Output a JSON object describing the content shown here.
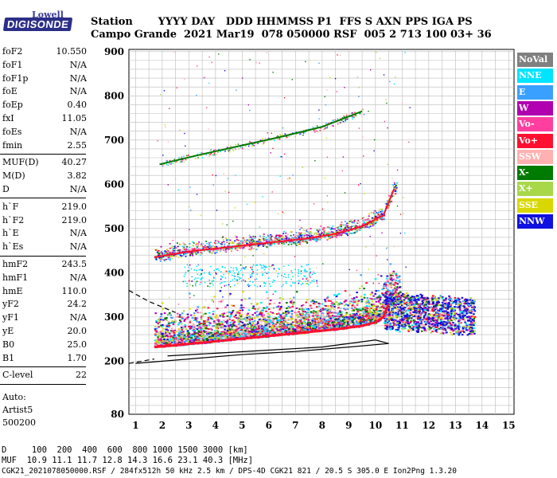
{
  "logo": {
    "top": "Lowell",
    "bottom": "DIGISONDE"
  },
  "header": {
    "labels": "Station       YYYY DAY   DDD HHMMSS P1  FFS S AXN PPS IGA PS",
    "values": "Campo Grande  2021 Mar19  078 050000 RSF  005 2 713 100 03+ 36"
  },
  "params": [
    {
      "group": [
        {
          "label": "foF2",
          "value": "10.550"
        },
        {
          "label": "foF1",
          "value": "N/A"
        },
        {
          "label": "foF1p",
          "value": "N/A"
        },
        {
          "label": "foE",
          "value": "N/A"
        },
        {
          "label": "foEp",
          "value": "0.40"
        },
        {
          "label": "fxI",
          "value": "11.05"
        },
        {
          "label": "foEs",
          "value": "N/A"
        },
        {
          "label": "fmin",
          "value": "2.55"
        }
      ]
    },
    {
      "group": [
        {
          "label": "MUF(D)",
          "value": "40.27"
        },
        {
          "label": "M(D)",
          "value": "3.82"
        },
        {
          "label": "D",
          "value": "N/A"
        }
      ]
    },
    {
      "group": [
        {
          "label": "h`F",
          "value": "219.0"
        },
        {
          "label": "h`F2",
          "value": "219.0"
        },
        {
          "label": "h`E",
          "value": "N/A"
        },
        {
          "label": "h`Es",
          "value": "N/A"
        }
      ]
    },
    {
      "group": [
        {
          "label": "hmF2",
          "value": "243.5"
        },
        {
          "label": "hmF1",
          "value": "N/A"
        },
        {
          "label": "hmE",
          "value": "110.0"
        },
        {
          "label": "yF2",
          "value": "24.2"
        },
        {
          "label": "yF1",
          "value": "N/A"
        },
        {
          "label": "yE",
          "value": "20.0"
        },
        {
          "label": "B0",
          "value": "25.0"
        },
        {
          "label": "B1",
          "value": "1.70"
        }
      ]
    },
    {
      "group": [
        {
          "label": "C-level",
          "value": "22"
        }
      ]
    }
  ],
  "autoscaling": {
    "line1": "Auto:",
    "line2": "Artist5",
    "line3": "500200"
  },
  "legend": [
    {
      "label": "NoVal",
      "color": "#808080"
    },
    {
      "label": "NNE",
      "color": "#00e5ff"
    },
    {
      "label": "E",
      "color": "#3aa0ff"
    },
    {
      "label": "W",
      "color": "#b000b0"
    },
    {
      "label": "Vo-",
      "color": "#ff3fa0"
    },
    {
      "label": "Vo+",
      "color": "#ff1030"
    },
    {
      "label": "SSW",
      "color": "#ffb0b0"
    },
    {
      "label": "X-",
      "color": "#007a00"
    },
    {
      "label": "X+",
      "color": "#a8d84a"
    },
    {
      "label": "SSE",
      "color": "#d8d800"
    },
    {
      "label": "NNW",
      "color": "#1010e0"
    }
  ],
  "chart_data": {
    "type": "scatter",
    "xlabel": "",
    "ylabel": "",
    "xlim": [
      0.75,
      15.2
    ],
    "ylim": [
      80,
      905
    ],
    "xticks": [
      1,
      2,
      3,
      4,
      5,
      6,
      7,
      8,
      9,
      10,
      11,
      12,
      13,
      14,
      15
    ],
    "yticks": [
      80,
      200,
      300,
      400,
      500,
      600,
      700,
      800,
      900
    ],
    "grid": true,
    "traces": [
      {
        "name": "O-trace F2",
        "color": "#ff1030",
        "x": [
          1.7,
          2.5,
          3.5,
          4.5,
          5.5,
          6.5,
          7.5,
          8.5,
          9.5,
          10.0,
          10.3,
          10.5
        ],
        "y": [
          232,
          236,
          242,
          248,
          254,
          260,
          266,
          272,
          280,
          288,
          300,
          330
        ]
      },
      {
        "name": "2nd hop",
        "color": "#ff1030",
        "x": [
          1.7,
          3.0,
          4.5,
          6.0,
          7.5,
          8.5,
          9.5,
          10.3,
          10.7
        ],
        "y": [
          435,
          448,
          458,
          468,
          478,
          488,
          505,
          530,
          590
        ]
      },
      {
        "name": "3rd hop",
        "color": "#007a00",
        "x": [
          1.9,
          3.5,
          5.0,
          6.5,
          8.0,
          9.5
        ],
        "y": [
          645,
          668,
          688,
          708,
          730,
          765
        ]
      }
    ],
    "profile": {
      "x": [
        1.0,
        3.0,
        5.0,
        7.0,
        9.0,
        10.5,
        10.0,
        8.0,
        6.0,
        4.0,
        2.2
      ],
      "y": [
        195,
        205,
        215,
        222,
        232,
        240,
        248,
        232,
        225,
        218,
        212
      ]
    },
    "profile_extrapolation": {
      "x": [
        0.75,
        1.5,
        2.5
      ],
      "y": [
        360,
        335,
        310
      ]
    }
  },
  "footer": {
    "distance": "D     100  200  400  600  800 1000 1500 3000 [km]",
    "muf": "MUF  10.9 11.1 11.7 12.8 14.3 16.6 23.1 40.3 [MHz]",
    "info": "CGK21_2021078050000.RSF / 284fx512h 50 kHz 2.5 km / DPS-4D CGK21 821 / 20.5 S 305.0 E Ion2Png 1.3.20"
  }
}
